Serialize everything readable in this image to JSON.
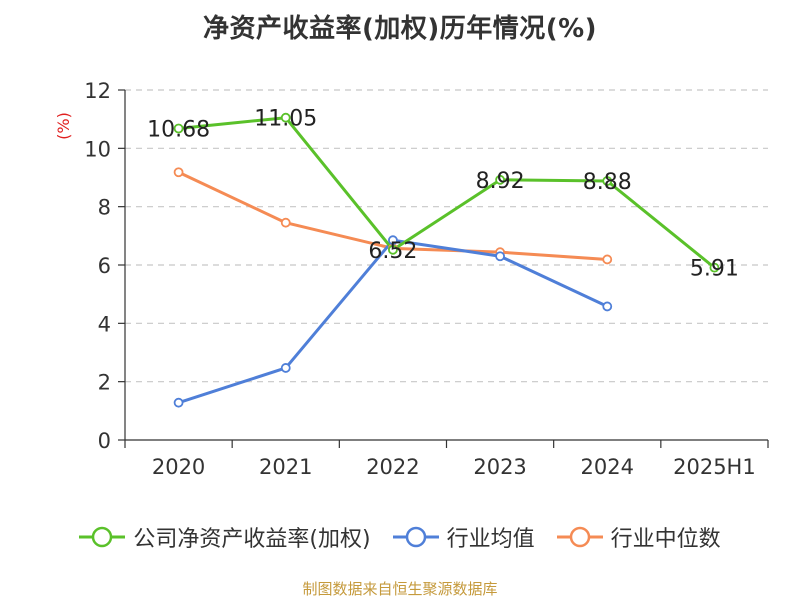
{
  "chart_data": {
    "type": "line",
    "title": "净资产收益率(加权)历年情况(%)",
    "ylabel": "(%)",
    "xlabel": "",
    "categories": [
      "2020",
      "2021",
      "2022",
      "2023",
      "2024",
      "2025H1"
    ],
    "ylim": [
      0,
      12
    ],
    "yticks": [
      0,
      2,
      4,
      6,
      8,
      10,
      12
    ],
    "grid": true,
    "legend_position": "bottom",
    "series": [
      {
        "name": "公司净资产收益率(加权)",
        "color": "#5ac12a",
        "values": [
          10.68,
          11.05,
          6.52,
          8.92,
          8.88,
          5.91
        ],
        "labels": true
      },
      {
        "name": "行业均值",
        "color": "#4f7fd8",
        "values": [
          1.28,
          2.47,
          6.85,
          6.3,
          4.58,
          null
        ],
        "labels": false
      },
      {
        "name": "行业中位数",
        "color": "#f58b54",
        "values": [
          9.18,
          7.45,
          6.57,
          6.44,
          6.19,
          null
        ],
        "labels": false
      }
    ]
  },
  "source": "制图数据来自恒生聚源数据库"
}
